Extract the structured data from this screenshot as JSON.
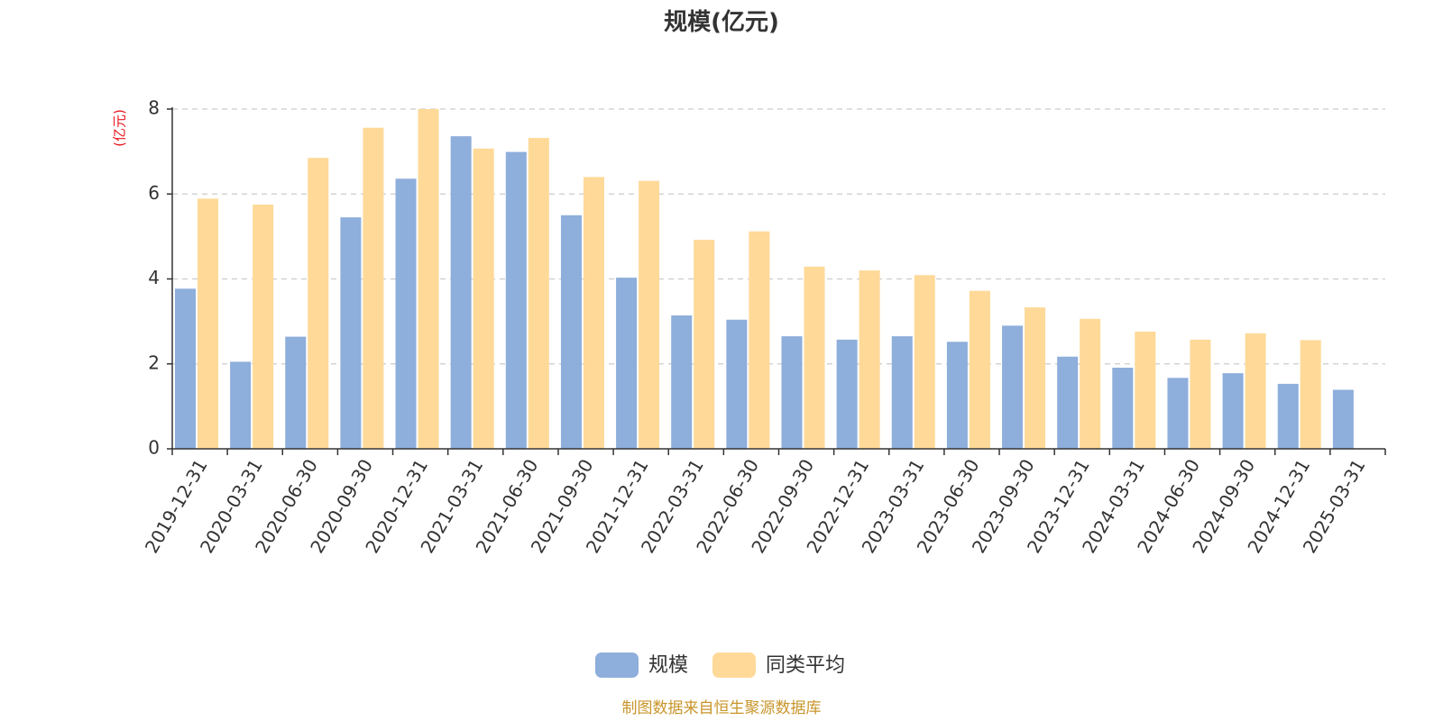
{
  "chart_data": {
    "type": "bar",
    "title": "规模(亿元)",
    "ylabel": "(亿元)",
    "xlabel": "",
    "ylim": [
      0,
      8
    ],
    "yticks": [
      0,
      2,
      4,
      6,
      8
    ],
    "grid": true,
    "legend_position": "bottom-center",
    "categories": [
      "2019-12-31",
      "2020-03-31",
      "2020-06-30",
      "2020-09-30",
      "2020-12-31",
      "2021-03-31",
      "2021-06-30",
      "2021-09-30",
      "2021-12-31",
      "2022-03-31",
      "2022-06-30",
      "2022-09-30",
      "2022-12-31",
      "2023-03-31",
      "2023-06-30",
      "2023-09-30",
      "2023-12-31",
      "2024-03-31",
      "2024-06-30",
      "2024-09-30",
      "2024-12-31",
      "2025-03-31"
    ],
    "series": [
      {
        "name": "规模",
        "color": "#8eaedb",
        "values": [
          3.77,
          2.05,
          2.64,
          5.45,
          6.36,
          7.36,
          6.99,
          5.5,
          4.03,
          3.14,
          3.04,
          2.65,
          2.57,
          2.65,
          2.52,
          2.9,
          2.17,
          1.91,
          1.67,
          1.78,
          1.53,
          1.39
        ]
      },
      {
        "name": "同类平均",
        "color": "#fed998",
        "values": [
          5.89,
          5.75,
          6.85,
          7.56,
          8.0,
          7.07,
          7.32,
          6.4,
          6.31,
          4.92,
          5.12,
          4.29,
          4.2,
          4.09,
          3.72,
          3.33,
          3.06,
          2.76,
          2.57,
          2.72,
          2.56,
          null
        ]
      }
    ],
    "axis_color": "#333333",
    "grid_color": "#cccccc",
    "ylabel_color": "#e8161c"
  },
  "footer": {
    "source": "制图数据来自恒生聚源数据库",
    "source_color": "#c8952a"
  }
}
